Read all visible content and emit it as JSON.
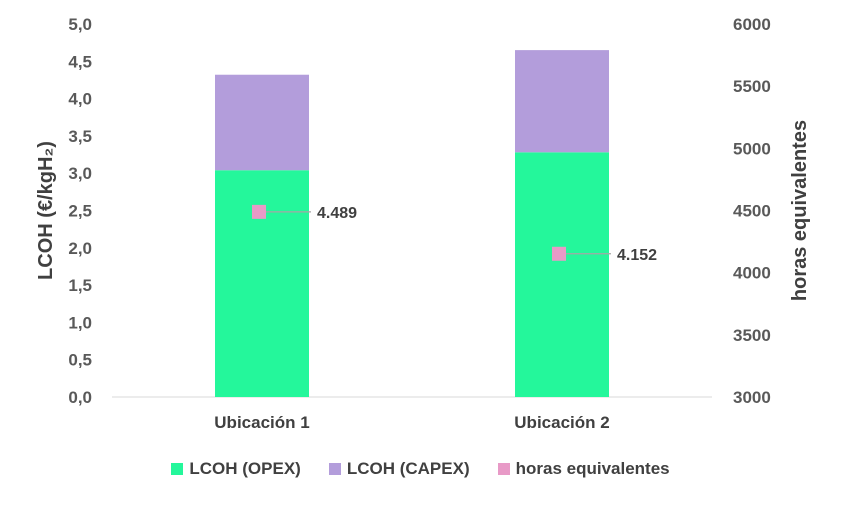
{
  "chart_data": {
    "type": "bar",
    "stacked": true,
    "categories": [
      "Ubicación 1",
      "Ubicación 2"
    ],
    "series": [
      {
        "name": "LCOH (OPEX)",
        "values": [
          3.04,
          3.28
        ],
        "color": "#24f79b",
        "axis": "left"
      },
      {
        "name": "LCOH (CAPEX)",
        "values": [
          1.28,
          1.37
        ],
        "color": "#b39ddb",
        "axis": "left"
      },
      {
        "name": "horas equivalentes",
        "values": [
          4489,
          4152
        ],
        "color": "#e89ac7",
        "axis": "right",
        "marker": "square"
      }
    ],
    "point_labels": [
      "4.489",
      "4.152"
    ],
    "ylabel": "LCOH (€/kgH₂)",
    "y2label": "horas equivalentes",
    "ylim": [
      0,
      5
    ],
    "y2lim": [
      3000,
      6000
    ],
    "yticks": [
      "0,0",
      "0,5",
      "1,0",
      "1,5",
      "2,0",
      "2,5",
      "3,0",
      "3,5",
      "4,0",
      "4,5",
      "5,0"
    ],
    "y2ticks": [
      "3000",
      "3500",
      "4000",
      "4500",
      "5000",
      "5500",
      "6000"
    ],
    "legend_position": "bottom",
    "grid": false
  }
}
